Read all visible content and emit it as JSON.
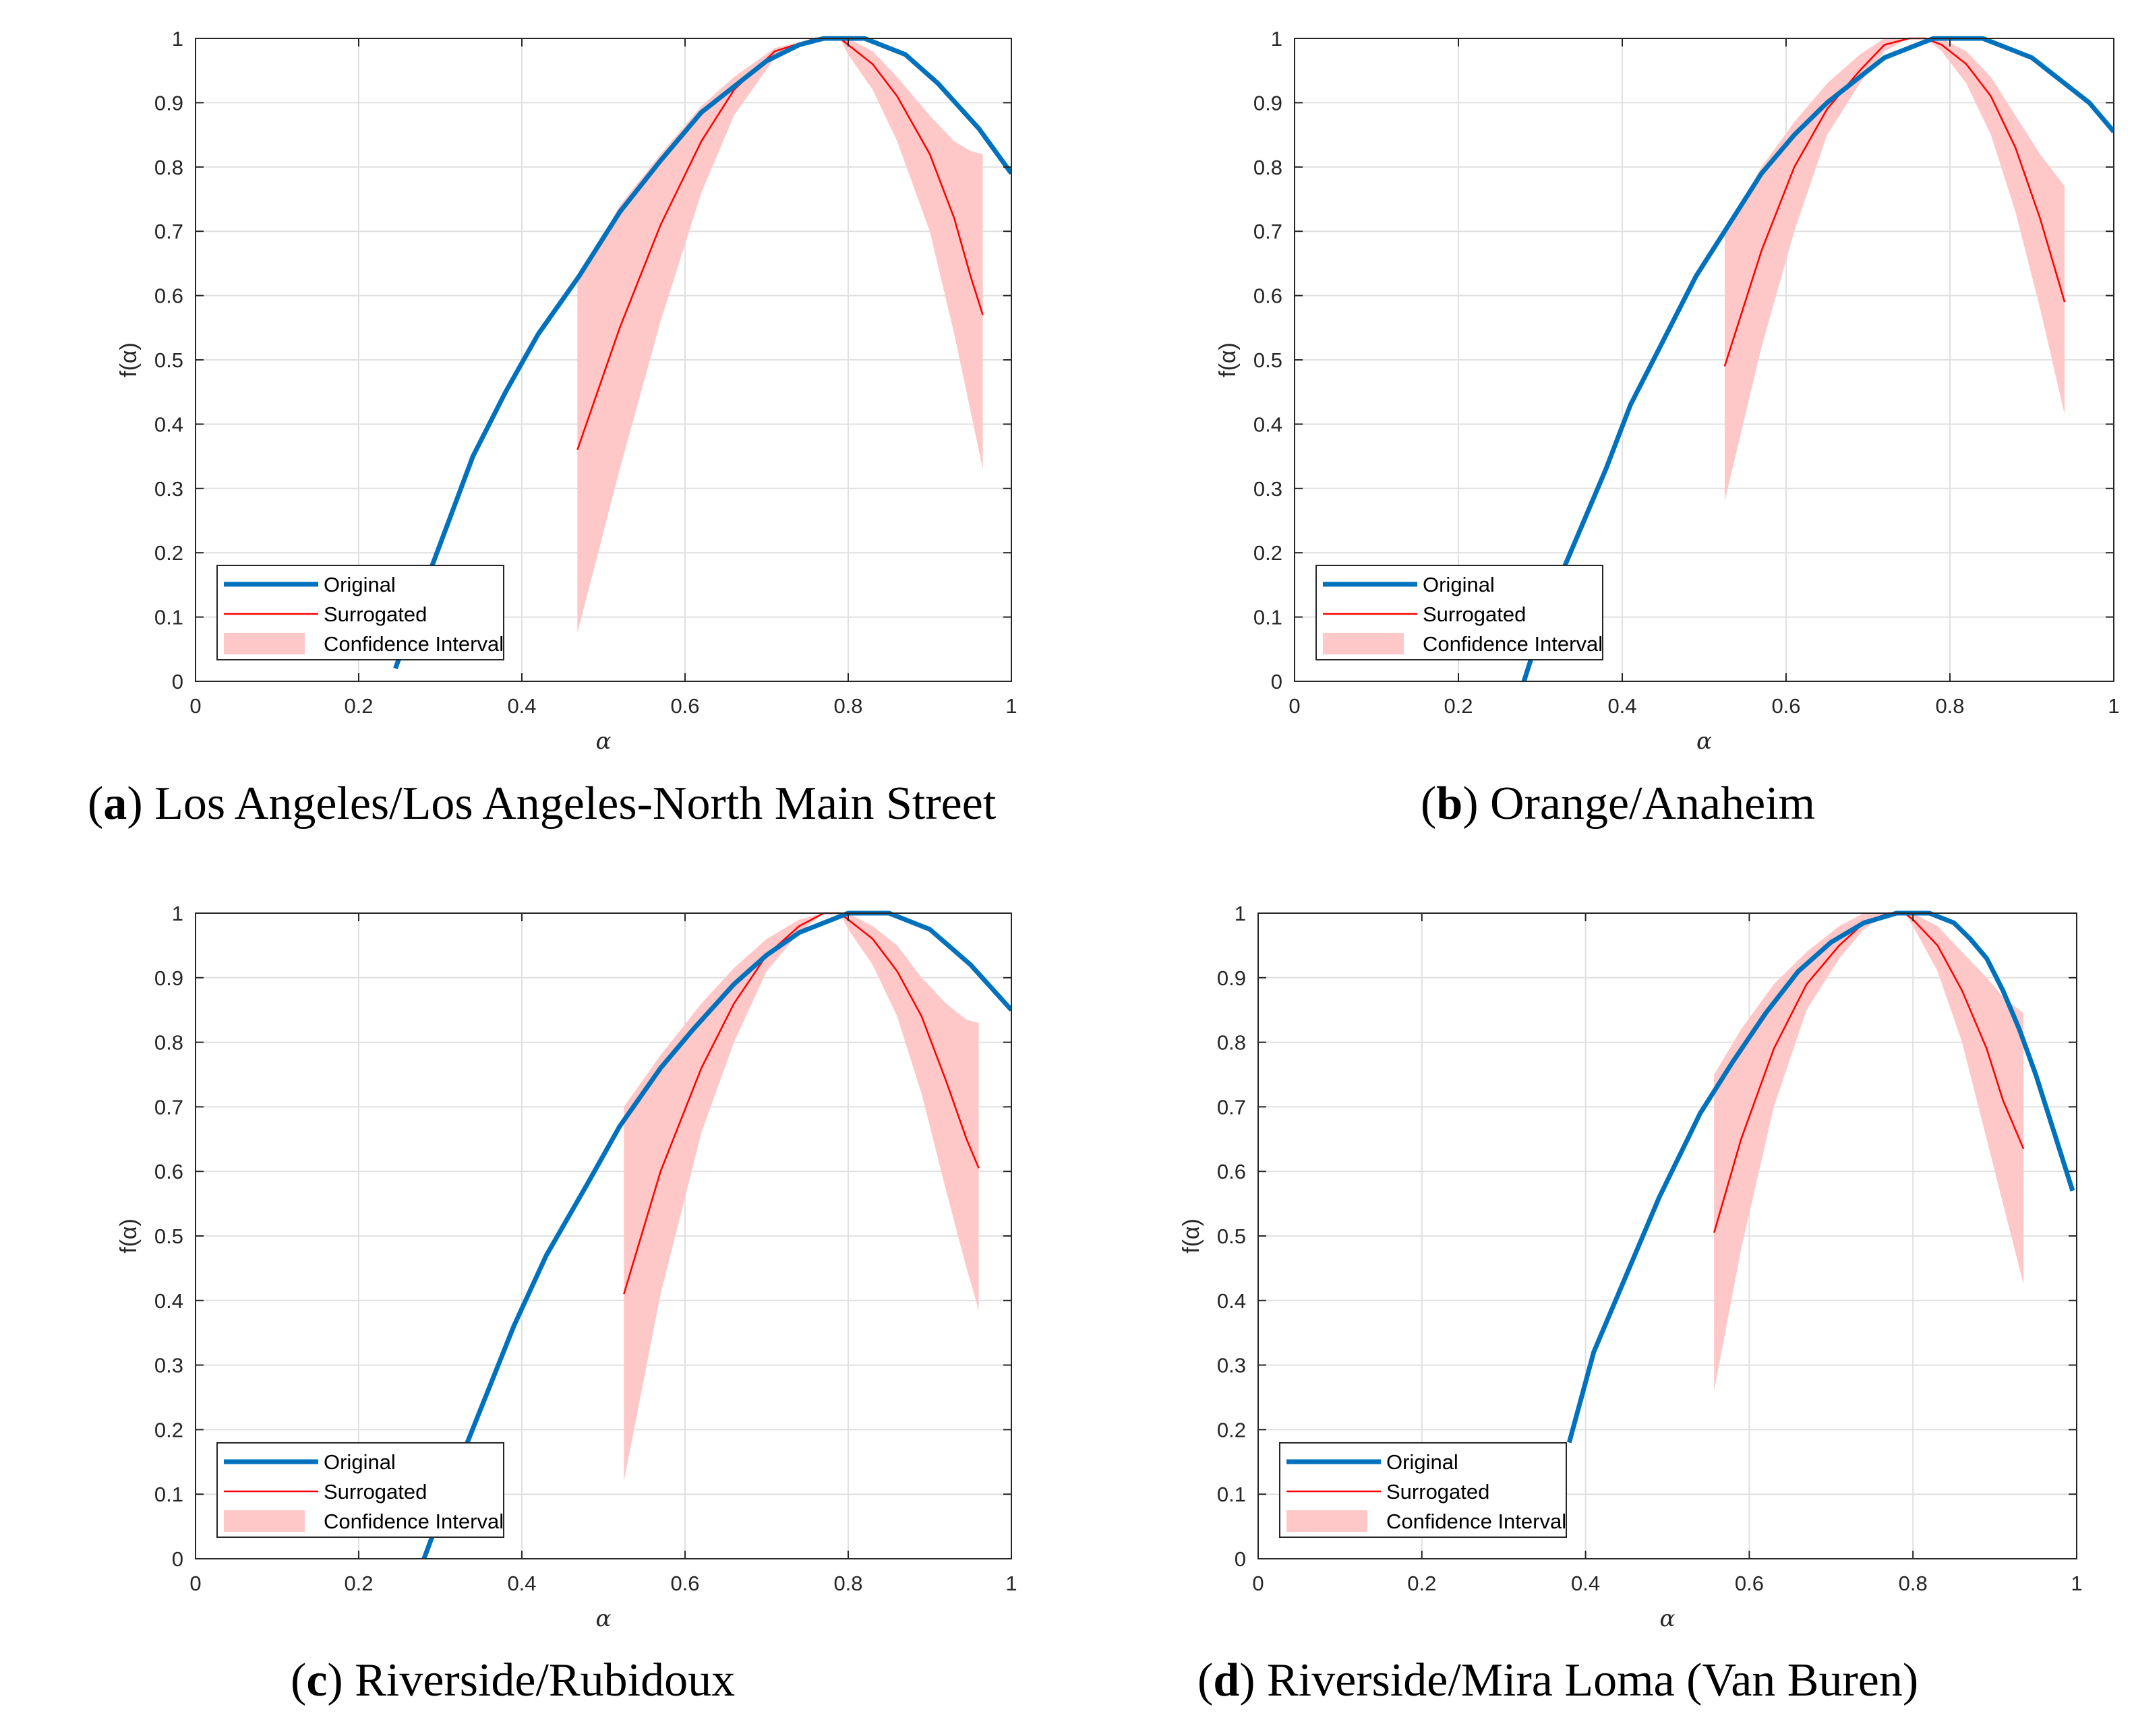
{
  "colors": {
    "original": "#0072BD",
    "surrogated": "#FF0000",
    "confidence": "#FFC8C8",
    "grid": "#E0E0E0",
    "axis": "#262626"
  },
  "chart_data": [
    {
      "type": "line",
      "panel_letter": "a",
      "caption": ") Los Angeles/Los Angeles-North Main Street",
      "xlabel": "α",
      "ylabel": "f(α)",
      "xlim": [
        0,
        1
      ],
      "ylim": [
        0,
        1
      ],
      "xticks": [
        "0",
        "0.2",
        "0.4",
        "0.6",
        "0.8",
        "1"
      ],
      "yticks": [
        "0",
        "0.1",
        "0.2",
        "0.3",
        "0.4",
        "0.5",
        "0.6",
        "0.7",
        "0.8",
        "0.9",
        "1"
      ],
      "grid": true,
      "legend_position": "bottom-left",
      "legend": [
        "Original",
        "Surrogated",
        "Confidence Interval"
      ],
      "series": [
        {
          "name": "Original",
          "x": [
            0.245,
            0.29,
            0.34,
            0.38,
            0.42,
            0.47,
            0.52,
            0.57,
            0.62,
            0.66,
            0.7,
            0.74,
            0.77,
            0.8,
            0.82,
            0.87,
            0.91,
            0.96,
            1.0
          ],
          "y": [
            0.02,
            0.18,
            0.35,
            0.45,
            0.54,
            0.63,
            0.73,
            0.81,
            0.885,
            0.925,
            0.965,
            0.99,
            1.0,
            1.0,
            1.0,
            0.975,
            0.93,
            0.86,
            0.79
          ]
        },
        {
          "name": "Surrogated",
          "x": [
            0.468,
            0.52,
            0.57,
            0.62,
            0.66,
            0.71,
            0.76,
            0.79,
            0.8,
            0.83,
            0.86,
            0.9,
            0.93,
            0.95,
            0.965
          ],
          "y": [
            0.36,
            0.55,
            0.71,
            0.84,
            0.92,
            0.98,
            1.0,
            1.0,
            0.99,
            0.96,
            0.91,
            0.82,
            0.72,
            0.63,
            0.57
          ]
        },
        {
          "name": "Confidence Interval",
          "x": [
            0.468,
            0.52,
            0.57,
            0.62,
            0.66,
            0.71,
            0.76,
            0.79,
            0.8,
            0.83,
            0.86,
            0.9,
            0.93,
            0.95,
            0.965
          ],
          "upper": [
            0.62,
            0.74,
            0.82,
            0.895,
            0.94,
            0.985,
            1.0,
            1.0,
            1.0,
            0.98,
            0.94,
            0.88,
            0.84,
            0.825,
            0.82
          ],
          "lower": [
            0.075,
            0.33,
            0.56,
            0.76,
            0.88,
            0.97,
            1.0,
            1.0,
            0.975,
            0.92,
            0.84,
            0.7,
            0.54,
            0.42,
            0.33
          ]
        }
      ]
    },
    {
      "type": "line",
      "panel_letter": "b",
      "caption": ") Orange/Anaheim",
      "xlabel": "α",
      "ylabel": "f(α)",
      "xlim": [
        0,
        1
      ],
      "ylim": [
        0,
        1
      ],
      "xticks": [
        "0",
        "0.2",
        "0.4",
        "0.6",
        "0.8",
        "1"
      ],
      "yticks": [
        "0",
        "0.1",
        "0.2",
        "0.3",
        "0.4",
        "0.5",
        "0.6",
        "0.7",
        "0.8",
        "0.9",
        "1"
      ],
      "grid": true,
      "legend_position": "bottom-left",
      "legend": [
        "Original",
        "Surrogated",
        "Confidence Interval"
      ],
      "series": [
        {
          "name": "Original",
          "x": [
            0.28,
            0.31,
            0.34,
            0.38,
            0.41,
            0.45,
            0.49,
            0.53,
            0.57,
            0.61,
            0.65,
            0.68,
            0.72,
            0.76,
            0.78,
            0.8,
            0.84,
            0.87,
            0.9,
            0.94,
            0.97,
            1.0
          ],
          "y": [
            0.0,
            0.12,
            0.21,
            0.33,
            0.43,
            0.53,
            0.63,
            0.71,
            0.79,
            0.85,
            0.9,
            0.93,
            0.97,
            0.99,
            1.0,
            1.0,
            1.0,
            0.985,
            0.97,
            0.93,
            0.9,
            0.855
          ]
        },
        {
          "name": "Surrogated",
          "x": [
            0.525,
            0.57,
            0.61,
            0.65,
            0.69,
            0.72,
            0.75,
            0.77,
            0.79,
            0.82,
            0.85,
            0.88,
            0.91,
            0.94
          ],
          "y": [
            0.49,
            0.67,
            0.8,
            0.89,
            0.95,
            0.99,
            1.0,
            1.0,
            0.99,
            0.96,
            0.91,
            0.83,
            0.72,
            0.59
          ]
        },
        {
          "name": "Confidence Interval",
          "x": [
            0.525,
            0.57,
            0.61,
            0.65,
            0.69,
            0.72,
            0.75,
            0.77,
            0.79,
            0.82,
            0.85,
            0.88,
            0.91,
            0.94
          ],
          "upper": [
            0.7,
            0.8,
            0.87,
            0.93,
            0.975,
            1.0,
            1.0,
            1.0,
            1.0,
            0.98,
            0.94,
            0.88,
            0.82,
            0.77
          ],
          "lower": [
            0.28,
            0.52,
            0.7,
            0.85,
            0.93,
            0.98,
            1.0,
            1.0,
            0.98,
            0.93,
            0.85,
            0.73,
            0.58,
            0.415
          ]
        }
      ]
    },
    {
      "type": "line",
      "panel_letter": "c",
      "caption": ") Riverside/Rubidoux",
      "xlabel": "α",
      "ylabel": "f(α)",
      "xlim": [
        0,
        1
      ],
      "ylim": [
        0,
        1
      ],
      "xticks": [
        "0",
        "0.2",
        "0.4",
        "0.6",
        "0.8",
        "1"
      ],
      "yticks": [
        "0",
        "0.1",
        "0.2",
        "0.3",
        "0.4",
        "0.5",
        "0.6",
        "0.7",
        "0.8",
        "0.9",
        "1"
      ],
      "grid": true,
      "legend_position": "bottom-left",
      "legend": [
        "Original",
        "Surrogated",
        "Confidence Interval"
      ],
      "series": [
        {
          "name": "Original",
          "x": [
            0.28,
            0.33,
            0.39,
            0.43,
            0.48,
            0.52,
            0.57,
            0.61,
            0.66,
            0.7,
            0.74,
            0.78,
            0.8,
            0.85,
            0.9,
            0.95,
            1.0
          ],
          "y": [
            0.0,
            0.17,
            0.36,
            0.47,
            0.58,
            0.67,
            0.76,
            0.82,
            0.89,
            0.935,
            0.97,
            0.99,
            1.0,
            1.0,
            0.975,
            0.92,
            0.85
          ]
        },
        {
          "name": "Surrogated",
          "x": [
            0.525,
            0.57,
            0.62,
            0.66,
            0.7,
            0.74,
            0.77,
            0.79,
            0.8,
            0.83,
            0.86,
            0.89,
            0.92,
            0.945,
            0.96
          ],
          "y": [
            0.41,
            0.6,
            0.76,
            0.86,
            0.935,
            0.98,
            1.0,
            1.0,
            0.99,
            0.96,
            0.91,
            0.84,
            0.74,
            0.65,
            0.605
          ]
        },
        {
          "name": "Confidence Interval",
          "x": [
            0.525,
            0.57,
            0.62,
            0.66,
            0.7,
            0.74,
            0.77,
            0.79,
            0.8,
            0.83,
            0.86,
            0.89,
            0.92,
            0.945,
            0.96
          ],
          "upper": [
            0.7,
            0.78,
            0.86,
            0.915,
            0.96,
            0.99,
            1.0,
            1.0,
            1.0,
            0.98,
            0.95,
            0.9,
            0.86,
            0.835,
            0.83
          ],
          "lower": [
            0.12,
            0.41,
            0.66,
            0.8,
            0.91,
            0.97,
            1.0,
            1.0,
            0.975,
            0.92,
            0.84,
            0.72,
            0.57,
            0.45,
            0.385
          ]
        }
      ]
    },
    {
      "type": "line",
      "panel_letter": "d",
      "caption": ") Riverside/Mira Loma (Van Buren)",
      "xlabel": "α",
      "ylabel": "f(α)",
      "xlim": [
        0,
        1
      ],
      "ylim": [
        0,
        1
      ],
      "xticks": [
        "0",
        "0.2",
        "0.4",
        "0.6",
        "0.8",
        "1"
      ],
      "yticks": [
        "0",
        "0.1",
        "0.2",
        "0.3",
        "0.4",
        "0.5",
        "0.6",
        "0.7",
        "0.8",
        "0.9",
        "1"
      ],
      "grid": true,
      "legend_position": "bottom-left",
      "legend": [
        "Original",
        "Surrogated",
        "Confidence Interval"
      ],
      "series": [
        {
          "name": "Original",
          "x": [
            0.38,
            0.41,
            0.45,
            0.49,
            0.54,
            0.58,
            0.62,
            0.66,
            0.7,
            0.74,
            0.78,
            0.8,
            0.82,
            0.85,
            0.87,
            0.89,
            0.91,
            0.93,
            0.95,
            0.97,
            0.995
          ],
          "y": [
            0.18,
            0.32,
            0.44,
            0.56,
            0.69,
            0.77,
            0.845,
            0.91,
            0.955,
            0.985,
            1.0,
            1.0,
            1.0,
            0.985,
            0.96,
            0.93,
            0.88,
            0.82,
            0.75,
            0.67,
            0.57
          ]
        },
        {
          "name": "Surrogated",
          "x": [
            0.557,
            0.59,
            0.63,
            0.67,
            0.71,
            0.74,
            0.77,
            0.79,
            0.8,
            0.83,
            0.86,
            0.89,
            0.91,
            0.935
          ],
          "y": [
            0.505,
            0.65,
            0.79,
            0.89,
            0.95,
            0.985,
            1.0,
            1.0,
            0.99,
            0.95,
            0.88,
            0.79,
            0.71,
            0.635
          ]
        },
        {
          "name": "Confidence Interval",
          "x": [
            0.557,
            0.59,
            0.63,
            0.67,
            0.71,
            0.74,
            0.77,
            0.79,
            0.8,
            0.83,
            0.86,
            0.89,
            0.91,
            0.935
          ],
          "upper": [
            0.75,
            0.82,
            0.89,
            0.94,
            0.98,
            1.0,
            1.0,
            1.0,
            1.0,
            0.98,
            0.94,
            0.9,
            0.87,
            0.845
          ],
          "lower": [
            0.26,
            0.48,
            0.7,
            0.85,
            0.93,
            0.975,
            1.0,
            1.0,
            0.98,
            0.91,
            0.8,
            0.65,
            0.55,
            0.425
          ]
        }
      ]
    }
  ]
}
